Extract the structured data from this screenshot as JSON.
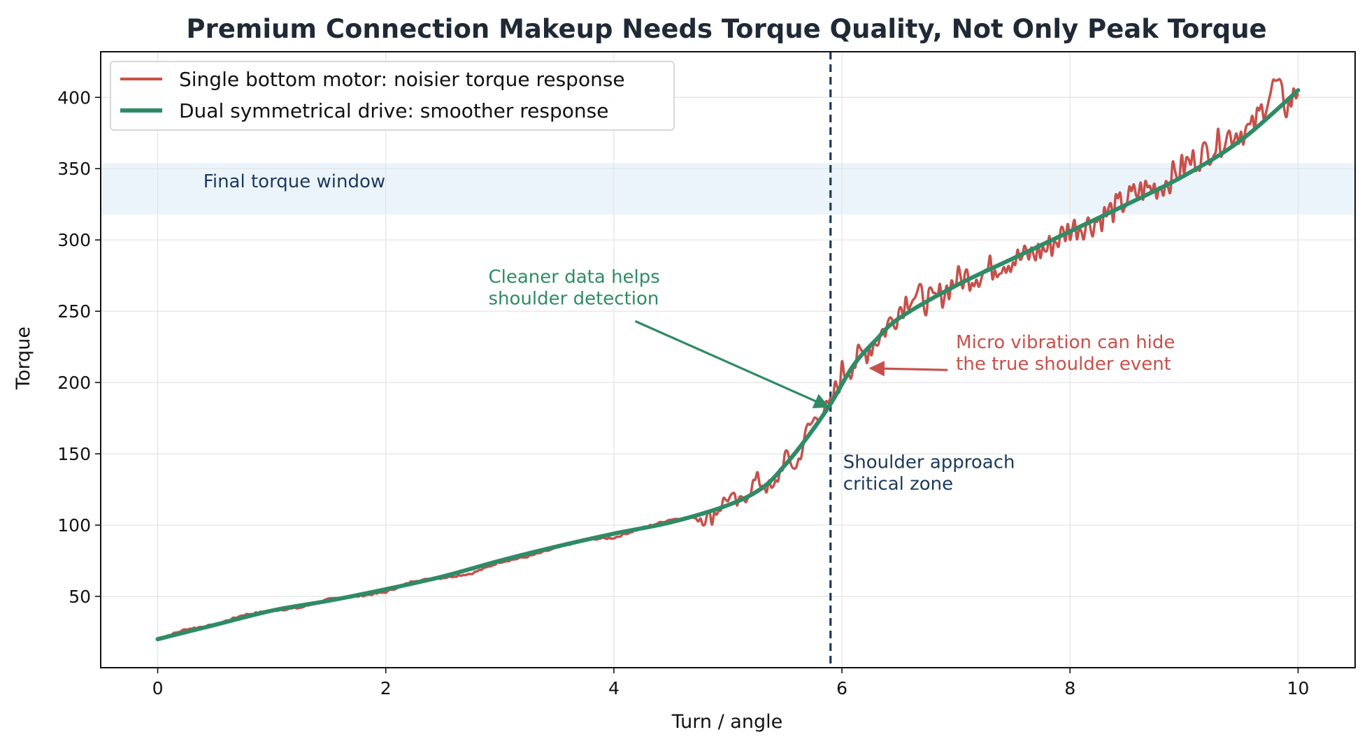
{
  "chart_data": {
    "type": "line",
    "title": "Premium Connection Makeup Needs Torque Quality, Not Only Peak Torque",
    "xlabel": "Turn / angle",
    "ylabel": "Torque",
    "xlim": [
      -0.5,
      10.5
    ],
    "ylim": [
      0,
      432
    ],
    "x_ticks": [
      0,
      2,
      4,
      6,
      8,
      10
    ],
    "y_ticks": [
      50,
      100,
      150,
      200,
      250,
      300,
      350,
      400
    ],
    "grid": true,
    "legend_position": "top-left",
    "series": [
      {
        "name": "Single bottom motor: noisier torque response",
        "color": "#c8504a",
        "style": "noisy",
        "x": [
          0,
          0.25,
          0.5,
          0.75,
          1,
          1.25,
          1.5,
          1.75,
          2,
          2.25,
          2.5,
          2.75,
          3,
          3.25,
          3.5,
          3.75,
          4,
          4.25,
          4.5,
          4.75,
          4.85,
          5,
          5.1,
          5.25,
          5.4,
          5.5,
          5.6,
          5.7,
          5.8,
          5.9,
          6.0,
          6.1,
          6.25,
          6.4,
          6.6,
          6.8,
          7.0,
          7.2,
          7.4,
          7.6,
          7.8,
          8.0,
          8.2,
          8.4,
          8.6,
          8.8,
          9.0,
          9.2,
          9.4,
          9.6,
          9.8,
          9.9,
          10.0
        ],
        "y": [
          20,
          27,
          30,
          37,
          40,
          42,
          48,
          50,
          53,
          61,
          63,
          66,
          74,
          78,
          84,
          90,
          91,
          98,
          104,
          106,
          105,
          120,
          114,
          132,
          124,
          148,
          140,
          168,
          178,
          184,
          207,
          213,
          225,
          240,
          262,
          256,
          272,
          276,
          284,
          288,
          294,
          308,
          312,
          322,
          334,
          338,
          352,
          362,
          374,
          378,
          410,
          393,
          405
        ]
      },
      {
        "name": "Dual symmetrical drive: smoother response",
        "color": "#2e8b66",
        "style": "smooth",
        "x": [
          0,
          0.5,
          1,
          1.5,
          2,
          2.5,
          3,
          3.5,
          4,
          4.5,
          5,
          5.3,
          5.5,
          5.7,
          5.9,
          6.1,
          6.3,
          6.5,
          7,
          7.5,
          8,
          8.5,
          9,
          9.5,
          10
        ],
        "y": [
          20,
          30,
          40,
          47,
          55,
          64,
          75,
          85,
          94,
          102,
          114,
          126,
          142,
          162,
          185,
          212,
          230,
          245,
          268,
          287,
          306,
          325,
          345,
          370,
          405
        ]
      }
    ],
    "bands": [
      {
        "y_from": 318,
        "y_to": 354,
        "label": "Final torque window",
        "color": "#ecf4fb",
        "text_color": "#1b3a5c"
      }
    ],
    "vertical_lines": [
      {
        "x": 5.9,
        "color": "#1b3a5c",
        "label": "Shoulder approach\ncritical zone"
      }
    ],
    "annotations": [
      {
        "text": "Cleaner data helps\nshoulder detection",
        "text_x": 2.9,
        "text_y": 270,
        "arrow_to": [
          5.88,
          183
        ],
        "color": "#2e8b66"
      },
      {
        "text": "Micro vibration can hide\nthe true shoulder event",
        "text_x": 7.0,
        "text_y": 224,
        "arrow_to": [
          6.25,
          210
        ],
        "color": "#c8504a"
      }
    ]
  }
}
